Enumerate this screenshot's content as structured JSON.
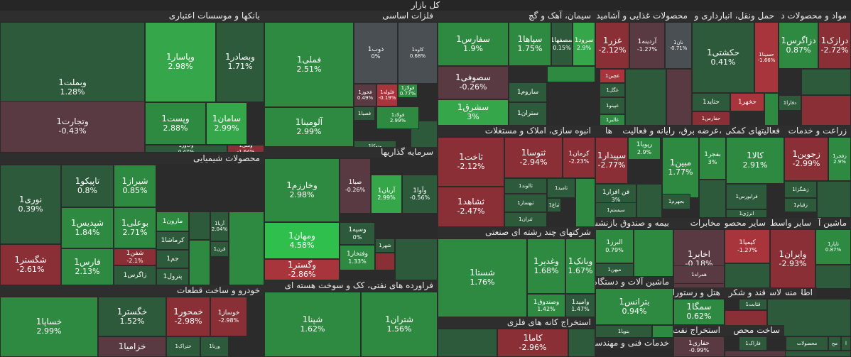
{
  "title": "کل بازار",
  "colors": {
    "green_dark": "#2c5a3a",
    "green": "#2f8a41",
    "green_light": "#36a64a",
    "green_bright": "#2fbf4d",
    "neutral": "#4a4f54",
    "red_muted": "#5a3a42",
    "red": "#8a2f35",
    "red_light": "#a8353b"
  },
  "sectors": [
    {
      "label": "بانکها و موسسات اعتباری"
    },
    {
      "label": "فلزات اساسی"
    },
    {
      "label": "سیمان، آهک و گچ"
    },
    {
      "label": "محصولات غذایی و آشامید"
    },
    {
      "label": "حمل ونقل، انبارداری و"
    },
    {
      "label": "مواد و محصولات د"
    },
    {
      "label": "محصولات شیمیایی"
    },
    {
      "label": "سرمایه گذاریها"
    },
    {
      "label": "انبوه سازی، املاک و مستغلات"
    },
    {
      "label": "ها"
    },
    {
      "label": "رایانه و فعالیت"
    },
    {
      "label": "،عرضه برق، گاز"
    },
    {
      "label": "فعالیتهای کمکی"
    },
    {
      "label": "زراعت و خدمات"
    },
    {
      "label": "خودرو و ساخت قطعات"
    },
    {
      "label": "فراورده های نفتی، کک و سوخت هسته ای"
    },
    {
      "label": "شرکتهای چند رشته ای صنعتی"
    },
    {
      "label": "استخراج کانه های فلزی"
    },
    {
      "label": "بیمه و صندوق بازنشس"
    },
    {
      "label": "مخابرات"
    },
    {
      "label": "سایر محصول"
    },
    {
      "label": "سایر واسط"
    },
    {
      "label": "ماشین آ"
    },
    {
      "label": "ماشین آلات و دستگاه"
    },
    {
      "label": "هتل و رستوران"
    },
    {
      "label": "قند و شکر"
    },
    {
      "label": "لاست"
    },
    {
      "label": "منس"
    },
    {
      "label": "اطلا"
    },
    {
      "label": "استخراج نفت گ"
    },
    {
      "label": "ساخت محص"
    },
    {
      "label": "خدمات فنی و مهندسی"
    }
  ],
  "tiles": [
    {
      "name": "وبملت1",
      "pct": "1.28%"
    },
    {
      "name": "وپاسار1",
      "pct": "2.98%"
    },
    {
      "name": "وبصادر1",
      "pct": "1.71%"
    },
    {
      "name": "وتجارت1",
      "pct": "-0.43%"
    },
    {
      "name": "وپست1",
      "pct": "2.88%"
    },
    {
      "name": "سامان1",
      "pct": "2.99%"
    },
    {
      "name": "وخاور1",
      "pct": "0.47%"
    },
    {
      "name": "وملل1",
      "pct": "-1.64%"
    },
    {
      "name": "فملی1",
      "pct": "2.51%"
    },
    {
      "name": "ذوب1",
      "pct": "0%"
    },
    {
      "name": "کاوه1",
      "pct": "0.68%"
    },
    {
      "name": "فخوز1",
      "pct": "0.49%"
    },
    {
      "name": "فلوله1",
      "pct": "-0.19%"
    },
    {
      "name": "فولاژ1",
      "pct": "0.77%"
    },
    {
      "name": "فصبا1",
      "pct": ""
    },
    {
      "name": "فولاد1",
      "pct": "2.99%"
    },
    {
      "name": "آلومینا1",
      "pct": "2.99%"
    },
    {
      "name": "وتوکا1",
      "pct": ""
    },
    {
      "name": "سفارس1",
      "pct": "1.9%"
    },
    {
      "name": "سپاها1",
      "pct": "1.75%"
    },
    {
      "name": "سصفها1",
      "pct": "0.15%"
    },
    {
      "name": "سرود1",
      "pct": "2.9%"
    },
    {
      "name": "سصوفی1",
      "pct": "-0.26%"
    },
    {
      "name": "ساروم1",
      "pct": ""
    },
    {
      "name": "سشرق1",
      "pct": "3%"
    },
    {
      "name": "ستران1",
      "pct": ""
    },
    {
      "name": "غزر1",
      "pct": "-2.12%"
    },
    {
      "name": "آردینه1",
      "pct": "-1.27%"
    },
    {
      "name": "نان1",
      "pct": "-0.71%"
    },
    {
      "name": "غچین1",
      "pct": ""
    },
    {
      "name": "غگل1",
      "pct": ""
    },
    {
      "name": "غپینو1",
      "pct": ""
    },
    {
      "name": "غالبر1",
      "pct": ""
    },
    {
      "name": "حکشتی1",
      "pct": "0.41%"
    },
    {
      "name": "حسینا1",
      "pct": "-1.66%"
    },
    {
      "name": "حتاید1",
      "pct": ""
    },
    {
      "name": "حخهر1",
      "pct": ""
    },
    {
      "name": "حفارس1",
      "pct": ""
    },
    {
      "name": "دزاگرس1",
      "pct": "0.87%"
    },
    {
      "name": "درازک1",
      "pct": "-2.72%"
    },
    {
      "name": "دفارا1",
      "pct": ""
    },
    {
      "name": "نوری1",
      "pct": "0.39%"
    },
    {
      "name": "تاپیکو1",
      "pct": "0.8%"
    },
    {
      "name": "شیراز1",
      "pct": "0.85%"
    },
    {
      "name": "شپدیس1",
      "pct": "1.84%"
    },
    {
      "name": "بوعلی1",
      "pct": "2.71%"
    },
    {
      "name": "شفن1",
      "pct": "-2.1%"
    },
    {
      "name": "شگستر1",
      "pct": "-2.61%"
    },
    {
      "name": "فارس1",
      "pct": "2.13%"
    },
    {
      "name": "زاگرس1",
      "pct": ""
    },
    {
      "name": "مارون1",
      "pct": ""
    },
    {
      "name": "کرماشا1",
      "pct": ""
    },
    {
      "name": "جم1",
      "pct": ""
    },
    {
      "name": "پترول1",
      "pct": ""
    },
    {
      "name": "آریا1",
      "pct": "2.04%"
    },
    {
      "name": "قرن1",
      "pct": ""
    },
    {
      "name": "وخارزم1",
      "pct": "2.98%"
    },
    {
      "name": "صبا1",
      "pct": "-0.26%"
    },
    {
      "name": "آریان1",
      "pct": "2.99%"
    },
    {
      "name": "وآوا1",
      "pct": "-0.56%"
    },
    {
      "name": "وسپه1",
      "pct": "0%"
    },
    {
      "name": "شهر1",
      "pct": ""
    },
    {
      "name": "ومهان1",
      "pct": "4.58%"
    },
    {
      "name": "وفتخار1",
      "pct": "1.33%"
    },
    {
      "name": "وگستر1",
      "pct": "-2.86%"
    },
    {
      "name": "ثاخت1",
      "pct": "-2.12%"
    },
    {
      "name": "ثنوسا1",
      "pct": "-2.94%"
    },
    {
      "name": "کرمان1",
      "pct": "-2.23%"
    },
    {
      "name": "ثالوند1",
      "pct": ""
    },
    {
      "name": "ثامید1",
      "pct": ""
    },
    {
      "name": "ثباغ1",
      "pct": ""
    },
    {
      "name": "ثبهساز1",
      "pct": ""
    },
    {
      "name": "ثشاهد1",
      "pct": "-2.47%"
    },
    {
      "name": "ثتران1",
      "pct": ""
    },
    {
      "name": "سپیدار1",
      "pct": "-2.77%"
    },
    {
      "name": "رپویا1",
      "pct": "2.9%"
    },
    {
      "name": "فن افزار1",
      "pct": "3%"
    },
    {
      "name": "سیستم1",
      "pct": ""
    },
    {
      "name": "مبین1",
      "pct": "1.77%"
    },
    {
      "name": "بفجر1",
      "pct": "3%"
    },
    {
      "name": "بجهرم1",
      "pct": ""
    },
    {
      "name": "کالا1",
      "pct": "2.91%"
    },
    {
      "name": "فرابورس1",
      "pct": ""
    },
    {
      "name": "انرژی1",
      "pct": ""
    },
    {
      "name": "زجوین1",
      "pct": "-2.99%"
    },
    {
      "name": "زفجر1",
      "pct": "2.9%"
    },
    {
      "name": "زشگزا1",
      "pct": ""
    },
    {
      "name": "زقیام1",
      "pct": ""
    },
    {
      "name": "خساپا1",
      "pct": "2.99%"
    },
    {
      "name": "خگستر1",
      "pct": "1.52%"
    },
    {
      "name": "خمحور1",
      "pct": "-2.98%"
    },
    {
      "name": "خوساز1",
      "pct": "-2.98%"
    },
    {
      "name": "خزامیا1",
      "pct": ""
    },
    {
      "name": "ختراک1",
      "pct": ""
    },
    {
      "name": "ورنا1",
      "pct": ""
    },
    {
      "name": "شپنا1",
      "pct": "1.62%"
    },
    {
      "name": "شتران1",
      "pct": "1.56%"
    },
    {
      "name": "شستا1",
      "pct": "1.76%"
    },
    {
      "name": "وغدیر1",
      "pct": "1.68%"
    },
    {
      "name": "وبانک1",
      "pct": "1.67%"
    },
    {
      "name": "وصندوق1",
      "pct": "1.42%"
    },
    {
      "name": "وامید1",
      "pct": "1.47%"
    },
    {
      "name": "کاما1",
      "pct": "-2.96%"
    },
    {
      "name": "البرز1",
      "pct": "0.79%"
    },
    {
      "name": "میهن1",
      "pct": ""
    },
    {
      "name": "اخابر1",
      "pct": "-0.18%"
    },
    {
      "name": "همراه1",
      "pct": ""
    },
    {
      "name": "کیمیا1",
      "pct": "-1.27%"
    },
    {
      "name": "وایران1",
      "pct": "-2.93%"
    },
    {
      "name": "تاپار1",
      "pct": "0.87%"
    },
    {
      "name": "بترانس1",
      "pct": "0.94%"
    },
    {
      "name": "بنویا1",
      "pct": ""
    },
    {
      "name": "سمگا1",
      "pct": "0.62%"
    },
    {
      "name": "قثابت1",
      "pct": ""
    },
    {
      "name": "حفاری1",
      "pct": "-0.99%"
    },
    {
      "name": "فاراک1",
      "pct": ""
    },
    {
      "name": "محصولات",
      "pct": ""
    },
    {
      "name": "مح",
      "pct": ""
    },
    {
      "name": "ا",
      "pct": ""
    }
  ]
}
